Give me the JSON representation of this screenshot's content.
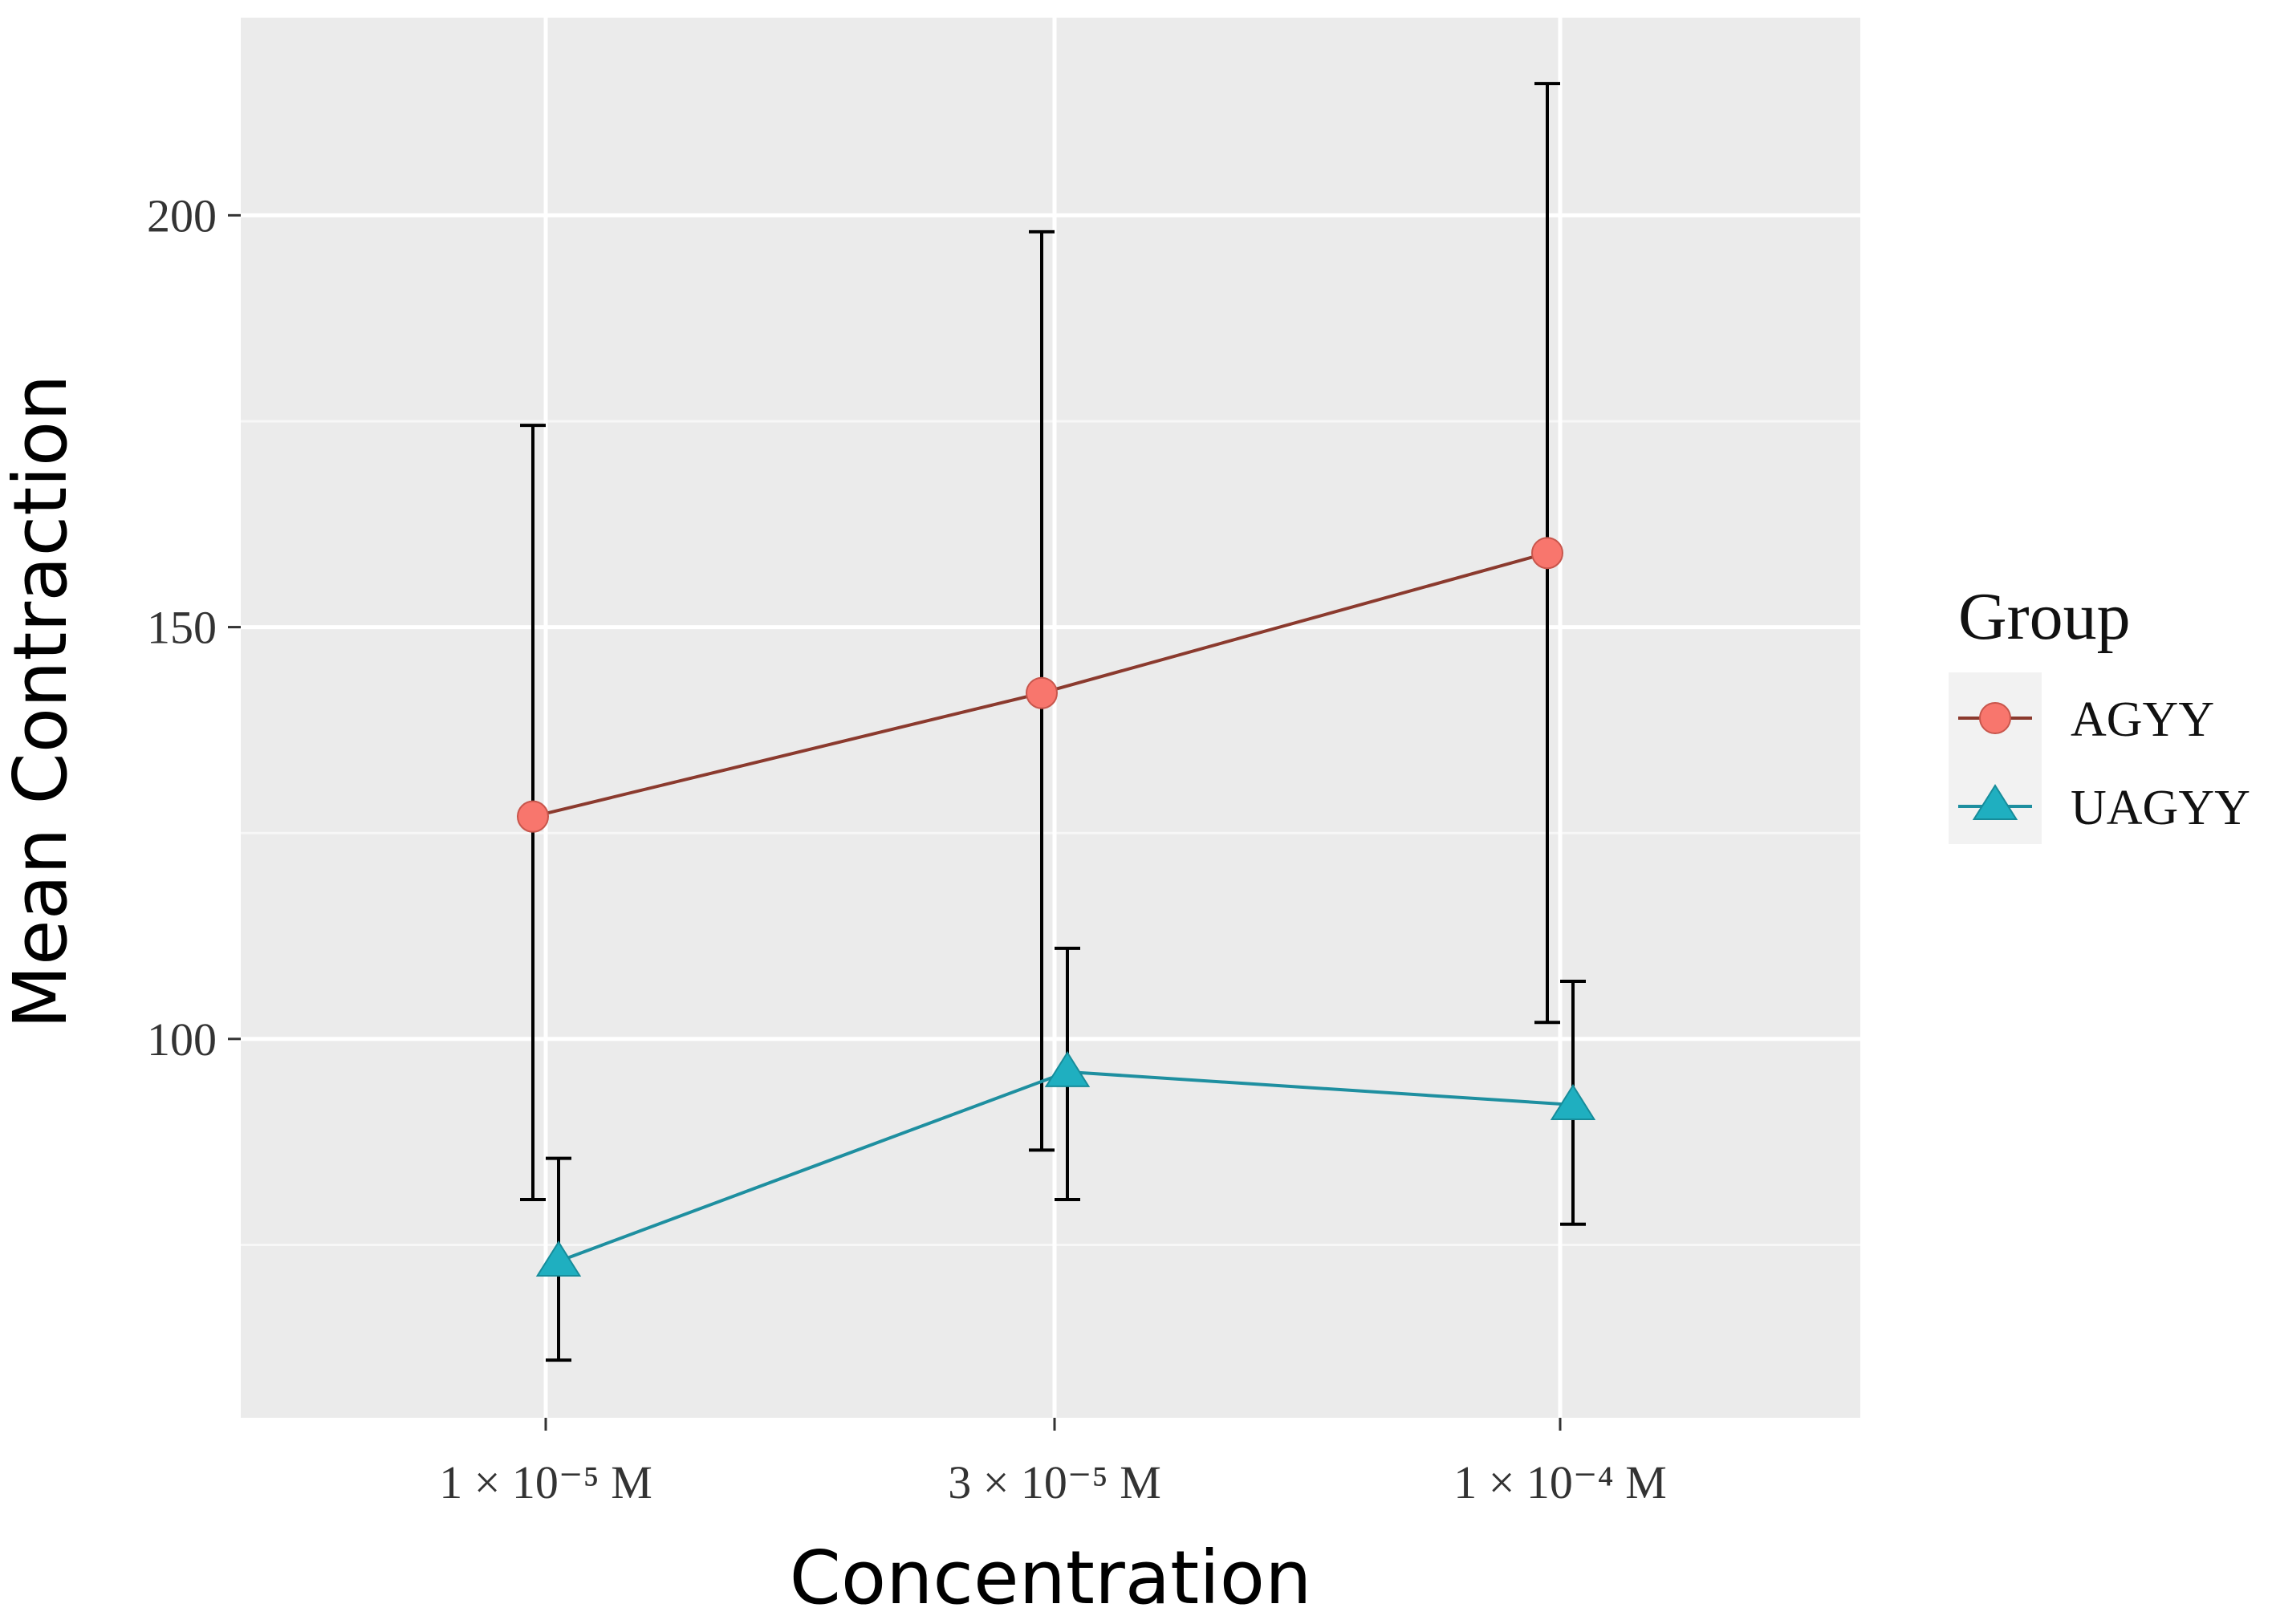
{
  "chart_data": {
    "type": "line",
    "title": "",
    "xlabel": "Concentration",
    "ylabel": "Mean Contraction",
    "categories": [
      "1 × 10⁻⁵ M",
      "3 × 10⁻⁵ M",
      "1 × 10⁻⁴ M"
    ],
    "ylim": [
      54,
      224
    ],
    "yticks": [
      100,
      150,
      200
    ],
    "grid": true,
    "legend": {
      "title": "Group",
      "position": "right"
    },
    "series": [
      {
        "name": "AGYY",
        "color": "#F8766D",
        "line_color": "#8B3A2E",
        "marker": "circle",
        "values": [
          127,
          142,
          159
        ],
        "error_low": [
          80.5,
          86.5,
          102
        ],
        "error_high": [
          174.5,
          198,
          216
        ]
      },
      {
        "name": "UAGYY",
        "color": "#1FAFC0",
        "line_color": "#1E8FA0",
        "marker": "triangle",
        "values": [
          73,
          96,
          92
        ],
        "error_low": [
          61,
          80.5,
          77.5
        ],
        "error_high": [
          85.5,
          111,
          107
        ]
      }
    ]
  }
}
